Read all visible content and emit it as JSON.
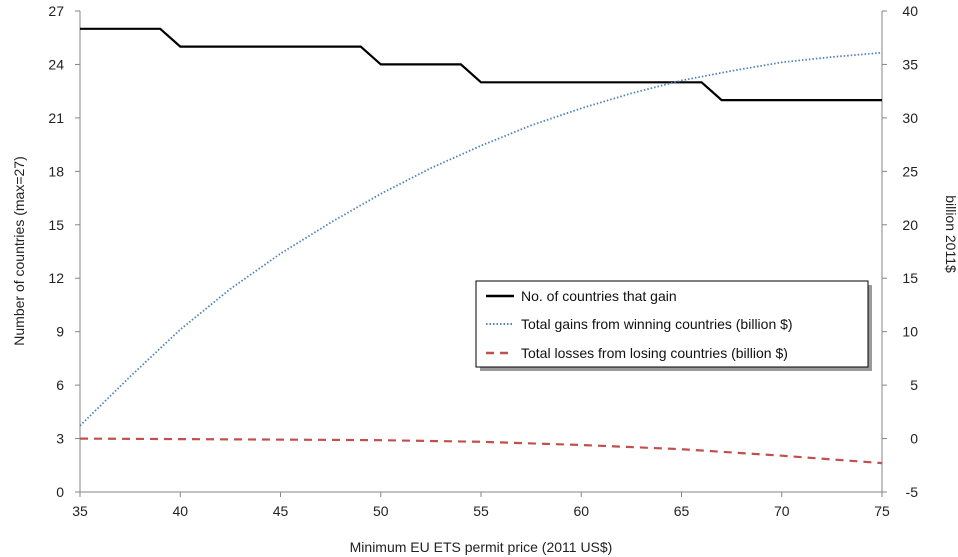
{
  "chart_data": {
    "type": "line",
    "xlabel": "Minimum EU ETS permit price (2011 US$)",
    "ylabel_left": "Number of countries (max=27)",
    "ylabel_right": "billion 2011$",
    "xlim": [
      35,
      75
    ],
    "ylim_left": [
      0,
      27
    ],
    "ylim_right": [
      -5,
      40
    ],
    "x_ticks": [
      "35",
      "40",
      "45",
      "50",
      "55",
      "60",
      "65",
      "70",
      "75"
    ],
    "y_left_ticks": [
      "0",
      "3",
      "6",
      "9",
      "12",
      "15",
      "18",
      "21",
      "24",
      "27"
    ],
    "y_right_ticks": [
      "-5",
      "0",
      "5",
      "10",
      "15",
      "20",
      "25",
      "30",
      "35",
      "40"
    ],
    "grid": false,
    "legend_position": "center-right",
    "series": [
      {
        "name": "No. of countries that gain",
        "axis": "left",
        "style": "solid",
        "color": "#000000",
        "x": [
          35,
          39,
          40,
          49,
          50,
          54,
          55,
          66,
          67,
          75
        ],
        "y": [
          26,
          26,
          25,
          25,
          24,
          24,
          23,
          23,
          22,
          22
        ]
      },
      {
        "name": "Total gains from winning countries (billion $)",
        "axis": "right",
        "style": "dotted",
        "color": "#4f81bd",
        "x": [
          35,
          37.5,
          40,
          42.5,
          45,
          47.5,
          50,
          52.5,
          55,
          57.5,
          60,
          62.5,
          65,
          67.5,
          70,
          72.5,
          75
        ],
        "y": [
          1.2,
          5.8,
          10.2,
          14.0,
          17.3,
          20.2,
          22.9,
          25.3,
          27.4,
          29.3,
          30.9,
          32.3,
          33.5,
          34.4,
          35.2,
          35.7,
          36.1
        ]
      },
      {
        "name": "Total losses from losing countries (billion $)",
        "axis": "right",
        "style": "dashed",
        "color": "#c0504d",
        "x": [
          35,
          40,
          45,
          50,
          55,
          60,
          65,
          70,
          75
        ],
        "y": [
          0.0,
          -0.05,
          -0.1,
          -0.15,
          -0.3,
          -0.6,
          -1.0,
          -1.6,
          -2.3
        ]
      }
    ]
  }
}
